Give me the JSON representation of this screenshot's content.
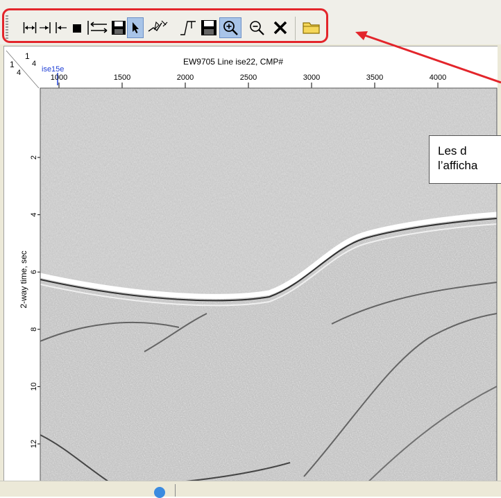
{
  "toolbar": {
    "buttons": [
      {
        "icon": "fit-horizontal-icon",
        "pressed": false
      },
      {
        "icon": "shrink-horizontal-icon",
        "pressed": false
      },
      {
        "icon": "stop-icon",
        "pressed": false
      },
      {
        "icon": "swap-direction-icon",
        "pressed": false
      },
      {
        "icon": "save-icon",
        "pressed": false
      },
      {
        "icon": "pointer-icon",
        "pressed": true
      },
      {
        "icon": "pick-horizon-icon",
        "pressed": false
      },
      {
        "icon": "trace-icon",
        "pressed": false
      },
      {
        "icon": "save-picks-icon",
        "pressed": false
      },
      {
        "icon": "zoom-in-icon",
        "pressed": true
      },
      {
        "icon": "zoom-out-icon",
        "pressed": false
      },
      {
        "icon": "close-icon",
        "pressed": false
      },
      {
        "icon": "open-folder-icon",
        "pressed": false
      }
    ]
  },
  "plot": {
    "title": "EW9705 Line ise22, CMP#",
    "scale_num": "1",
    "scale_den": "4",
    "marker_label": "ise15e",
    "ylabel": "2-way time, sec",
    "x_ticks": [
      "1000",
      "1500",
      "2000",
      "2500",
      "3000",
      "3500",
      "4000"
    ],
    "y_ticks": [
      "2",
      "4",
      "6",
      "8",
      "10",
      "12"
    ]
  },
  "chart_data": {
    "type": "heatmap",
    "title": "EW9705 Line ise22, CMP#",
    "ylabel": "2-way time, sec",
    "x_ticks": [
      1000,
      1500,
      2000,
      2500,
      3000,
      3500,
      4000
    ],
    "y_ticks": [
      2,
      4,
      6,
      8,
      10,
      12
    ],
    "marker": {
      "label": "ise15e",
      "x": 1000
    }
  },
  "callout": {
    "line1": "Les d",
    "line2": "l’afficha"
  },
  "colors": {
    "highlight": "#e3252b",
    "pressed": "#a8c4e8",
    "marker": "#1f3fd6"
  }
}
